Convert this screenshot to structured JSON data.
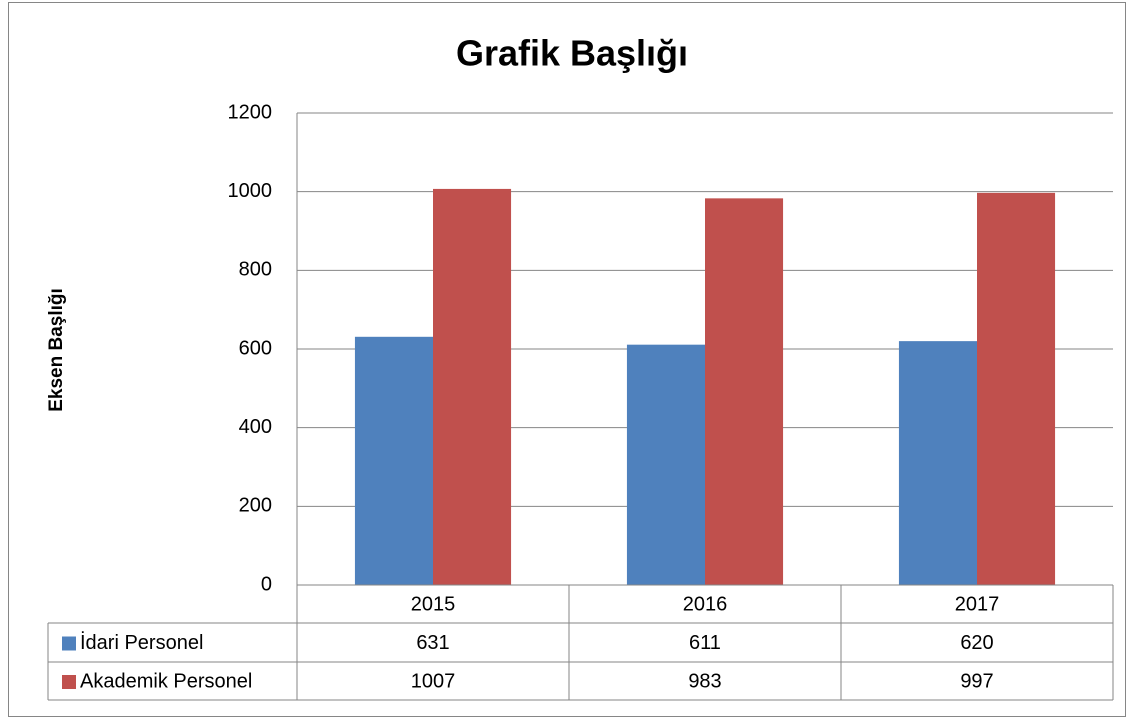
{
  "chart_data": {
    "type": "bar",
    "title": "Grafik Başlığı",
    "y_label": "Eksen Başlığı",
    "categories": [
      "2015",
      "2016",
      "2017"
    ],
    "series": [
      {
        "name": "İdari Personel",
        "color": "#4f81bd",
        "values": [
          631,
          611,
          620
        ]
      },
      {
        "name": "Akademik Personel",
        "color": "#c0504d",
        "values": [
          1007,
          983,
          997
        ]
      }
    ],
    "ylim": [
      0,
      1200
    ],
    "yticks": [
      0,
      200,
      400,
      600,
      800,
      1000,
      1200
    ],
    "grid": true,
    "data_table": true
  }
}
